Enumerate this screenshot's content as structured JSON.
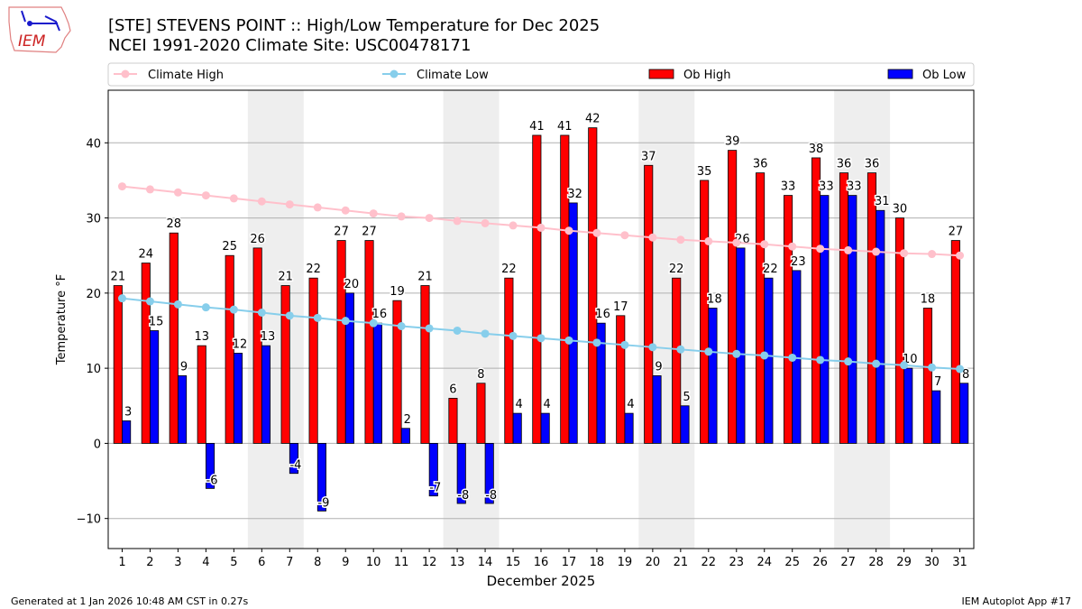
{
  "header": {
    "title_line1": "[STE] STEVENS POINT :: High/Low Temperature for Dec 2025",
    "title_line2": "NCEI 1991-2020 Climate Site: USC00478171",
    "logo_text": "IEM"
  },
  "footer": {
    "left": "Generated at 1 Jan 2026 10:48 AM CST in 0.27s",
    "right": "IEM Autoplot App #17"
  },
  "chart_data": {
    "type": "bar",
    "title": "[STE] STEVENS POINT :: High/Low Temperature for Dec 2025",
    "xlabel": "December 2025",
    "ylabel": "Temperature °F",
    "xlim": [
      0.5,
      31.5
    ],
    "ylim": [
      -14,
      47
    ],
    "yticks": [
      -10,
      0,
      10,
      20,
      30,
      40
    ],
    "grid": "horizontal",
    "legend_placement": "top",
    "weekend_shading": [
      [
        6,
        7
      ],
      [
        13,
        14
      ],
      [
        20,
        21
      ],
      [
        27,
        28
      ]
    ],
    "x": [
      1,
      2,
      3,
      4,
      5,
      6,
      7,
      8,
      9,
      10,
      11,
      12,
      13,
      14,
      15,
      16,
      17,
      18,
      19,
      20,
      21,
      22,
      23,
      24,
      25,
      26,
      27,
      28,
      29,
      30,
      31
    ],
    "series": [
      {
        "name": "Climate High",
        "kind": "line",
        "color": "#ffc0cb",
        "values": [
          34.2,
          33.8,
          33.4,
          33.0,
          32.6,
          32.2,
          31.8,
          31.4,
          31.0,
          30.6,
          30.2,
          30.0,
          29.6,
          29.3,
          29.0,
          28.7,
          28.3,
          28.0,
          27.7,
          27.4,
          27.1,
          26.9,
          26.7,
          26.5,
          26.2,
          25.9,
          25.7,
          25.5,
          25.3,
          25.2,
          25.0
        ]
      },
      {
        "name": "Climate Low",
        "kind": "line",
        "color": "#87ceeb",
        "values": [
          19.3,
          18.9,
          18.5,
          18.1,
          17.8,
          17.4,
          17.0,
          16.7,
          16.3,
          16.0,
          15.6,
          15.3,
          15.0,
          14.6,
          14.3,
          14.0,
          13.7,
          13.4,
          13.1,
          12.8,
          12.5,
          12.2,
          11.9,
          11.7,
          11.4,
          11.1,
          10.9,
          10.6,
          10.4,
          10.1,
          9.9
        ]
      },
      {
        "name": "Ob High",
        "kind": "bar",
        "color": "#ff0000",
        "values": [
          21,
          24,
          28,
          13,
          25,
          26,
          21,
          22,
          27,
          27,
          19,
          21,
          6,
          8,
          22,
          41,
          41,
          42,
          17,
          37,
          22,
          35,
          39,
          36,
          33,
          38,
          36,
          36,
          30,
          18,
          27
        ]
      },
      {
        "name": "Ob Low",
        "kind": "bar",
        "color": "#0000ff",
        "values": [
          3,
          15,
          9,
          -6,
          12,
          13,
          -4,
          -9,
          20,
          16,
          2,
          -7,
          -8,
          -8,
          4,
          4,
          32,
          16,
          4,
          9,
          5,
          18,
          26,
          22,
          23,
          33,
          33,
          31,
          10,
          7,
          8
        ]
      }
    ]
  }
}
